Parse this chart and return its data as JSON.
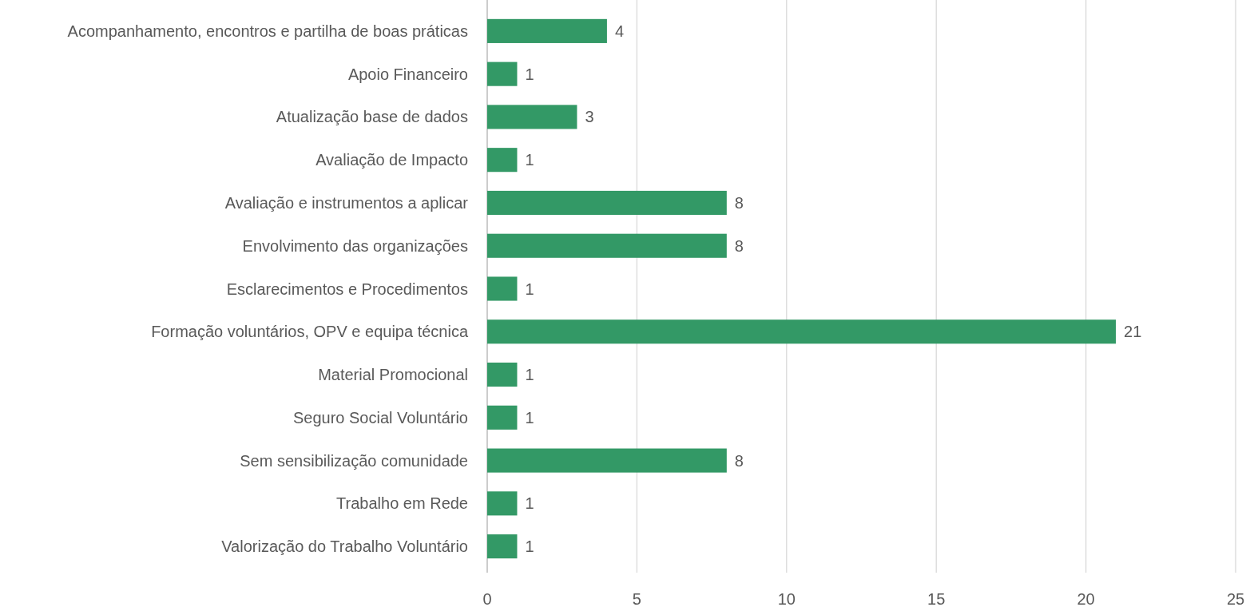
{
  "chart_data": {
    "type": "bar",
    "orientation": "horizontal",
    "categories": [
      "Acompanhamento, encontros e partilha de boas práticas",
      "Apoio Financeiro",
      "Atualização base de dados",
      "Avaliação de Impacto",
      "Avaliação e instrumentos a aplicar",
      "Envolvimento das organizações",
      "Esclarecimentos e Procedimentos",
      "Formação voluntários, OPV e equipa técnica",
      "Material Promocional",
      "Seguro Social Voluntário",
      "Sem sensibilização comunidade",
      "Trabalho em Rede",
      "Valorização do Trabalho Voluntário"
    ],
    "values": [
      4,
      1,
      3,
      1,
      8,
      8,
      1,
      21,
      1,
      1,
      8,
      1,
      1
    ],
    "color": "#339966",
    "xlim": [
      0,
      25
    ],
    "xticks": [
      0,
      5,
      10,
      15,
      20,
      25
    ],
    "grid": "x",
    "data_labels": true
  }
}
